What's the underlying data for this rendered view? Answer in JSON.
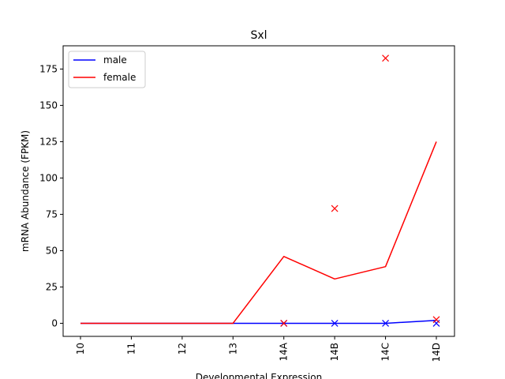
{
  "chart_data": {
    "type": "line",
    "title": "Sxl",
    "xlabel": "Developmental Expression",
    "ylabel": "mRNA Abundance (FPKM)",
    "categories": [
      "10",
      "11",
      "12",
      "13",
      "14A",
      "14B",
      "14C",
      "14D"
    ],
    "ylim": [
      -9,
      191
    ],
    "yticks": [
      0,
      25,
      50,
      75,
      100,
      125,
      150,
      175
    ],
    "legend_position": "top-left",
    "series": [
      {
        "name": "male",
        "color": "#0000ff",
        "values": [
          0,
          0,
          0,
          0,
          0,
          0,
          0,
          2
        ],
        "replicates": [
          {
            "category": "14A",
            "value": 0
          },
          {
            "category": "14B",
            "value": 0
          },
          {
            "category": "14C",
            "value": 0
          },
          {
            "category": "14D",
            "value": 0
          }
        ]
      },
      {
        "name": "female",
        "color": "#ff0000",
        "values": [
          0,
          0,
          0,
          0,
          46,
          30.5,
          39,
          125
        ],
        "replicates": [
          {
            "category": "14A",
            "value": 0
          },
          {
            "category": "14B",
            "value": 79
          },
          {
            "category": "14C",
            "value": 182.5
          },
          {
            "category": "14D",
            "value": 2.5
          }
        ]
      }
    ]
  }
}
